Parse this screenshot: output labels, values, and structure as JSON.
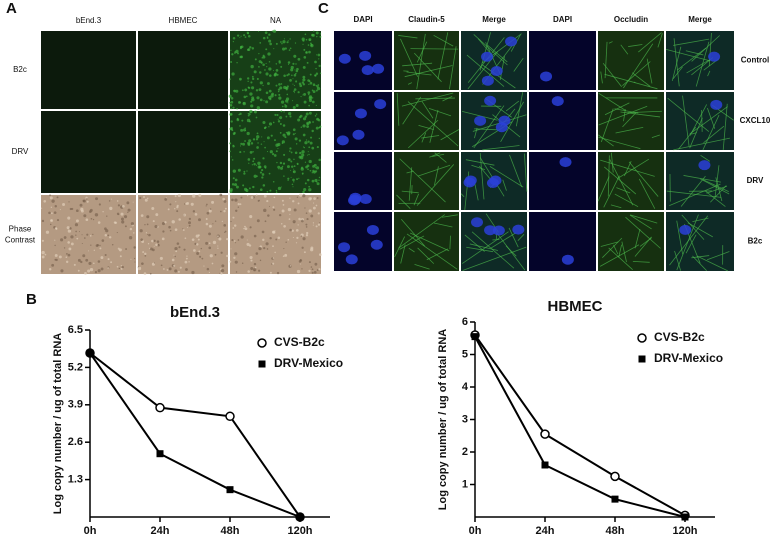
{
  "panels": {
    "a": {
      "label": "A",
      "columns": [
        "bEnd.3",
        "HBMEC",
        "NA"
      ],
      "rows": [
        "B2c",
        "DRV",
        "Phase Contrast"
      ]
    },
    "b": {
      "label": "B"
    },
    "c": {
      "label": "C",
      "columns": [
        "DAPI",
        "Claudin-5",
        "Merge",
        "DAPI",
        "Occludin",
        "Merge"
      ],
      "rows": [
        "Control",
        "CXCL10",
        "DRV",
        "B2c"
      ]
    }
  },
  "chart_data": [
    {
      "type": "line",
      "title": "bEnd.3",
      "y_label": "Log copy number / ug of total RNA",
      "categories": [
        "0h",
        "24h",
        "48h",
        "120h"
      ],
      "ylim": [
        0,
        6.5
      ],
      "yticks": [
        1.3,
        2.6,
        3.9,
        5.2,
        6.5
      ],
      "series": [
        {
          "name": "CVS-B2c",
          "color": "#000000",
          "marker": "circle",
          "values": [
            5.7,
            3.8,
            3.5,
            0
          ]
        },
        {
          "name": "DRV-Mexico",
          "color": "#000000",
          "marker": "square",
          "values": [
            5.7,
            2.2,
            0.95,
            0
          ]
        }
      ]
    },
    {
      "type": "line",
      "title": "HBMEC",
      "y_label": "Log copy number / ug of total RNA",
      "categories": [
        "0h",
        "24h",
        "48h",
        "120h"
      ],
      "ylim": [
        0,
        6
      ],
      "yticks": [
        1,
        2,
        3,
        4,
        5,
        6
      ],
      "series": [
        {
          "name": "CVS-B2c",
          "color": "#000000",
          "marker": "circle",
          "values": [
            5.6,
            2.55,
            1.25,
            0.05
          ]
        },
        {
          "name": "DRV-Mexico",
          "color": "#000000",
          "marker": "square",
          "values": [
            5.55,
            1.6,
            0.55,
            0
          ]
        }
      ]
    }
  ]
}
